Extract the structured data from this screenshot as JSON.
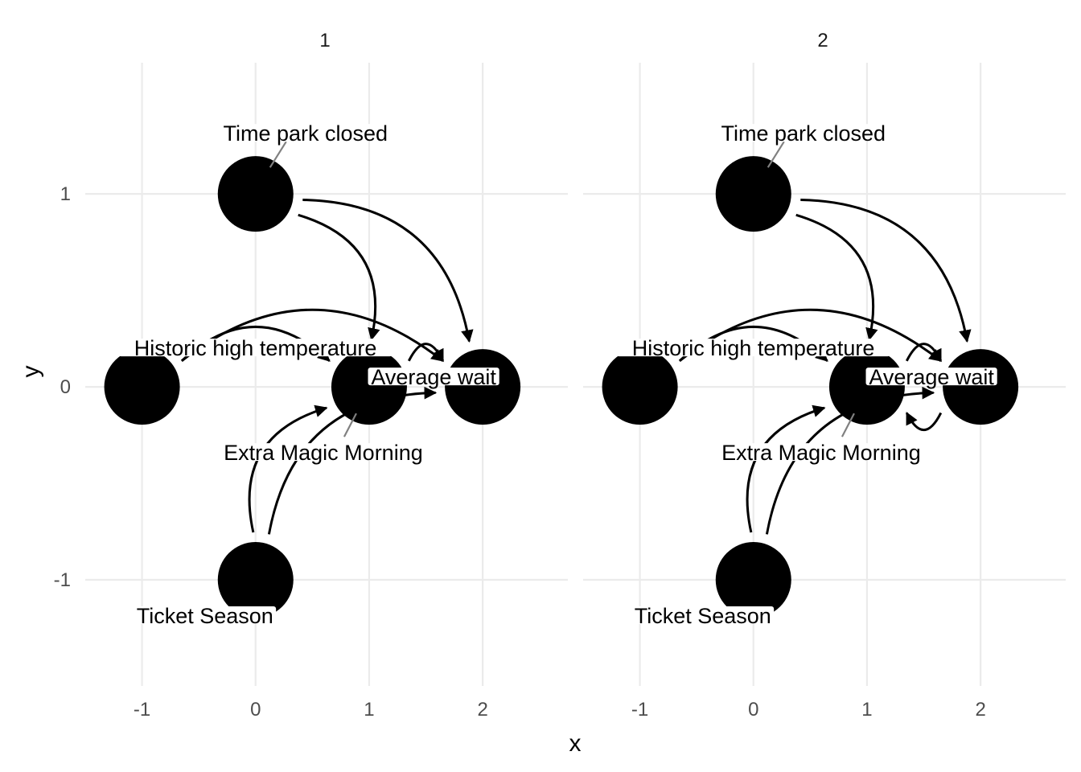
{
  "chart_data": {
    "type": "dag",
    "xlabel": "x",
    "ylabel": "y",
    "x_ticks": [
      "-1",
      "0",
      "1",
      "2"
    ],
    "y_ticks": [
      "-1",
      "0",
      "1"
    ],
    "xlim": [
      -1.5,
      2.75
    ],
    "ylim": [
      -1.55,
      1.68
    ],
    "grid": true,
    "nodes": [
      {
        "id": "park_close",
        "label": "Time park closed",
        "x": 0,
        "y": 1
      },
      {
        "id": "park_temperature_high",
        "label": "Historic high temperature",
        "x": -1,
        "y": 0
      },
      {
        "id": "park_extra_magic_morning",
        "label": "Extra Magic Morning",
        "x": 1,
        "y": 0
      },
      {
        "id": "wait_minutes_posted_avg",
        "label": "Average wait",
        "x": 2,
        "y": 0
      },
      {
        "id": "park_ticket_season",
        "label": "Ticket Season",
        "x": 0,
        "y": -1
      }
    ],
    "panels": [
      {
        "strip": "1",
        "edges": [
          [
            "park_close",
            "park_extra_magic_morning"
          ],
          [
            "park_close",
            "wait_minutes_posted_avg"
          ],
          [
            "park_temperature_high",
            "park_extra_magic_morning"
          ],
          [
            "park_temperature_high",
            "wait_minutes_posted_avg"
          ],
          [
            "park_extra_magic_morning",
            "wait_minutes_posted_avg"
          ],
          [
            "park_ticket_season",
            "park_extra_magic_morning"
          ],
          [
            "park_ticket_season",
            "wait_minutes_posted_avg"
          ]
        ]
      },
      {
        "strip": "2",
        "edges": [
          [
            "park_close",
            "park_extra_magic_morning"
          ],
          [
            "park_close",
            "wait_minutes_posted_avg"
          ],
          [
            "park_temperature_high",
            "park_extra_magic_morning"
          ],
          [
            "park_temperature_high",
            "wait_minutes_posted_avg"
          ],
          [
            "park_extra_magic_morning",
            "wait_minutes_posted_avg"
          ],
          [
            "park_ticket_season",
            "park_extra_magic_morning"
          ],
          [
            "park_ticket_season",
            "wait_minutes_posted_avg"
          ],
          [
            "wait_minutes_posted_avg",
            "park_extra_magic_morning"
          ]
        ]
      }
    ]
  }
}
